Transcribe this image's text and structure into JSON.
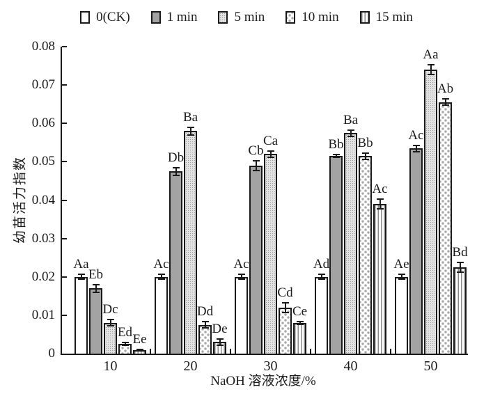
{
  "chart_data": {
    "type": "bar",
    "title": "",
    "xlabel": "NaOH 溶液浓度/%",
    "ylabel": "幼苗活力指数",
    "ylim": [
      0,
      0.08
    ],
    "ytick_labels": [
      "0",
      "0.01",
      "0.02",
      "0.03",
      "0.04",
      "0.05",
      "0.06",
      "0.07",
      "0.08"
    ],
    "categories": [
      "10",
      "20",
      "30",
      "40",
      "50"
    ],
    "legend_position": "top",
    "grid": false,
    "error_bars": true,
    "series": [
      {
        "name": "0(CK)",
        "pattern": "ck",
        "values": [
          0.02,
          0.02,
          0.02,
          0.02,
          0.02
        ],
        "errors": [
          0.0008,
          0.0008,
          0.0008,
          0.0008,
          0.0008
        ],
        "sig_labels": [
          "Aa",
          "Ac",
          "Ac",
          "Ad",
          "Ae"
        ]
      },
      {
        "name": "1 min",
        "pattern": "solid-gray",
        "values": [
          0.017,
          0.0475,
          0.049,
          0.0515,
          0.0535
        ],
        "errors": [
          0.0012,
          0.0012,
          0.0015,
          0.0005,
          0.001
        ],
        "sig_labels": [
          "Eb",
          "Db",
          "Cb",
          "Bb",
          "Ac"
        ]
      },
      {
        "name": "5 min",
        "pattern": "fine-dots",
        "values": [
          0.008,
          0.058,
          0.052,
          0.0575,
          0.074
        ],
        "errors": [
          0.001,
          0.0012,
          0.001,
          0.001,
          0.0015
        ],
        "sig_labels": [
          "Dc",
          "Ba",
          "Ca",
          "Ba",
          "Aa"
        ]
      },
      {
        "name": "10 min",
        "pattern": "sparse-dots",
        "values": [
          0.0025,
          0.0075,
          0.012,
          0.0515,
          0.0655
        ],
        "errors": [
          0.0005,
          0.001,
          0.0015,
          0.001,
          0.001
        ],
        "sig_labels": [
          "Ed",
          "Dd",
          "Cd",
          "Bb",
          "Ab"
        ]
      },
      {
        "name": "15 min",
        "pattern": "v-stripes",
        "values": [
          0.001,
          0.003,
          0.008,
          0.039,
          0.0225
        ],
        "errors": [
          0.0003,
          0.001,
          0.0005,
          0.0015,
          0.0015
        ],
        "sig_labels": [
          "Ee",
          "De",
          "Ce",
          "Ac",
          "Bd"
        ]
      }
    ],
    "colors": {
      "axis": "#1a1a1a",
      "text": "#1a1a1a",
      "bar_gray": "#a3a3a3"
    }
  }
}
